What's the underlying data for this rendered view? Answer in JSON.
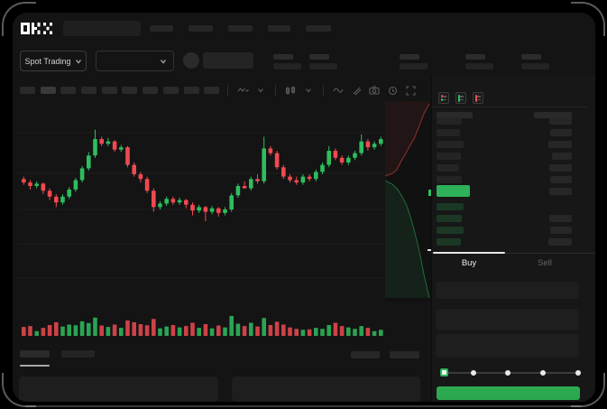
{
  "app": {
    "brand": "OKX"
  },
  "header": {
    "nav_placeholders": 5,
    "stat_groups": 5
  },
  "market_bar": {
    "selector_label": "Spot Trading"
  },
  "chart_toolbar": {
    "timeframe_placeholders": 10,
    "active_timeframe_index": 1,
    "icons": [
      "line-tool",
      "chevron-down",
      "candle-style",
      "indicator-wave",
      "draw-tool",
      "camera",
      "timer",
      "fullscreen"
    ]
  },
  "order_book": {
    "view_icons": [
      "combined-book",
      "bids-book",
      "asks-book"
    ],
    "ask_left_widths": [
      28,
      26,
      30,
      27,
      25,
      28,
      26
    ],
    "ask_right_widths": [
      25,
      24,
      26,
      22,
      25,
      24,
      25
    ],
    "bid_left_widths": [
      30,
      28,
      30,
      27
    ],
    "bid_right_widths": [
      null,
      25,
      24,
      26
    ],
    "price_bar_width": 37
  },
  "trade_panel": {
    "tabs": [
      {
        "label": "Buy"
      },
      {
        "label": "Sell"
      }
    ],
    "active_tab": "Buy",
    "input_rows": 3,
    "slider_stops": 5,
    "slider_active_stop": 0,
    "slider_stop_fractions": [
      0,
      0.224,
      0.481,
      0.737,
      1
    ]
  },
  "colors": {
    "up": "#2ebd5f",
    "down": "#ef4a50",
    "price_highlight": "#2eb159",
    "buy_button": "#2ca950",
    "bid_dim": "rgba(46,177,89,0.22)"
  },
  "chart_data": {
    "type": "candlestick",
    "candle_format": "o,h,l,c (relative price 0-100, no axis labels visible)",
    "ylim": [
      0,
      100
    ],
    "grid": true,
    "candles": [
      [
        46,
        48,
        41,
        43
      ],
      [
        43,
        45,
        37,
        40
      ],
      [
        40,
        44,
        38,
        42
      ],
      [
        42,
        43,
        33,
        36
      ],
      [
        36,
        38,
        28,
        31
      ],
      [
        31,
        33,
        22,
        26
      ],
      [
        26,
        33,
        24,
        31
      ],
      [
        31,
        39,
        29,
        37
      ],
      [
        37,
        47,
        35,
        45
      ],
      [
        45,
        57,
        43,
        55
      ],
      [
        55,
        69,
        53,
        66
      ],
      [
        66,
        88,
        64,
        80
      ],
      [
        80,
        82,
        74,
        76
      ],
      [
        76,
        81,
        74,
        78
      ],
      [
        78,
        79,
        69,
        71
      ],
      [
        71,
        75,
        69,
        73
      ],
      [
        73,
        74,
        56,
        58
      ],
      [
        58,
        60,
        48,
        50
      ],
      [
        50,
        52,
        43,
        46
      ],
      [
        46,
        48,
        34,
        36
      ],
      [
        36,
        38,
        18,
        22
      ],
      [
        22,
        27,
        20,
        25
      ],
      [
        25,
        31,
        23,
        29
      ],
      [
        29,
        31,
        24,
        26
      ],
      [
        26,
        30,
        24,
        28
      ],
      [
        28,
        29,
        21,
        24
      ],
      [
        24,
        26,
        15,
        19
      ],
      [
        19,
        24,
        17,
        22
      ],
      [
        22,
        23,
        10,
        18
      ],
      [
        18,
        23,
        16,
        21
      ],
      [
        21,
        22,
        14,
        17
      ],
      [
        17,
        22,
        15,
        20
      ],
      [
        20,
        34,
        18,
        32
      ],
      [
        32,
        42,
        30,
        40
      ],
      [
        40,
        44,
        38,
        38
      ],
      [
        38,
        48,
        36,
        46
      ],
      [
        46,
        50,
        42,
        44
      ],
      [
        44,
        82,
        42,
        72
      ],
      [
        72,
        74,
        66,
        68
      ],
      [
        68,
        70,
        54,
        56
      ],
      [
        56,
        58,
        46,
        48
      ],
      [
        48,
        50,
        43,
        45
      ],
      [
        45,
        48,
        41,
        43
      ],
      [
        43,
        50,
        41,
        48
      ],
      [
        48,
        50,
        44,
        46
      ],
      [
        46,
        54,
        44,
        52
      ],
      [
        52,
        60,
        50,
        58
      ],
      [
        58,
        74,
        56,
        70
      ],
      [
        70,
        72,
        62,
        64
      ],
      [
        64,
        66,
        58,
        60
      ],
      [
        60,
        66,
        58,
        64
      ],
      [
        64,
        70,
        62,
        68
      ],
      [
        68,
        84,
        66,
        78
      ],
      [
        78,
        80,
        70,
        73
      ],
      [
        73,
        78,
        71,
        76
      ],
      [
        76,
        82,
        74,
        80
      ]
    ],
    "volumes": [
      38,
      42,
      20,
      34,
      46,
      58,
      40,
      48,
      45,
      62,
      55,
      78,
      44,
      38,
      48,
      34,
      66,
      58,
      50,
      45,
      72,
      32,
      40,
      46,
      36,
      42,
      56,
      34,
      50,
      32,
      44,
      36,
      85,
      52,
      42,
      56,
      40,
      76,
      46,
      60,
      48,
      36,
      30,
      26,
      28,
      34,
      30,
      46,
      56,
      42,
      36,
      30,
      42,
      34,
      20,
      26
    ],
    "depth": {
      "asks_line": [
        [
          0,
          83
        ],
        [
          8,
          80
        ],
        [
          13,
          76
        ],
        [
          18,
          66
        ],
        [
          23,
          58
        ],
        [
          27,
          50
        ],
        [
          32,
          42
        ],
        [
          36,
          32
        ],
        [
          40,
          22
        ],
        [
          43,
          14
        ],
        [
          46,
          8
        ],
        [
          49,
          3
        ]
      ],
      "bids_line": [
        [
          0,
          88
        ],
        [
          8,
          92
        ],
        [
          14,
          98
        ],
        [
          19,
          106
        ],
        [
          24,
          116
        ],
        [
          28,
          128
        ],
        [
          32,
          142
        ],
        [
          36,
          158
        ],
        [
          40,
          176
        ],
        [
          43,
          192
        ],
        [
          46,
          205
        ],
        [
          49,
          218
        ]
      ]
    }
  }
}
